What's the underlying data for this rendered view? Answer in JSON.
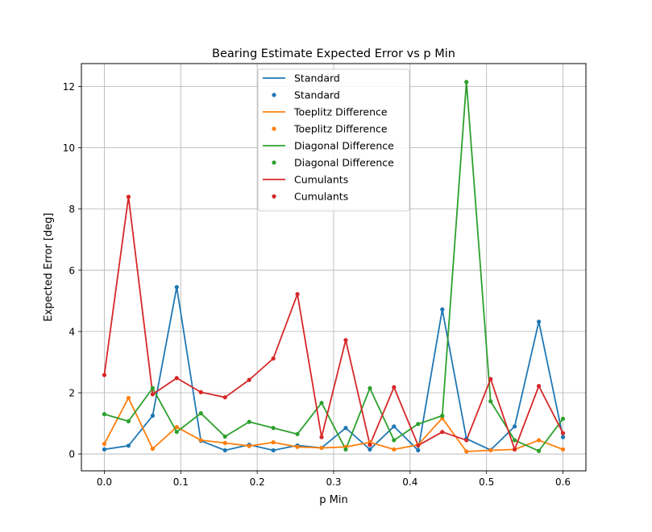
{
  "chart_data": {
    "type": "line",
    "title": "Bearing Estimate Expected Error vs p Min",
    "xlabel": "p Min",
    "ylabel": "Expected Error [deg]",
    "xlim": [
      -0.03,
      0.63
    ],
    "ylim": [
      -0.55,
      12.75
    ],
    "xticks": [
      0.0,
      0.1,
      0.2,
      0.3,
      0.4,
      0.5,
      0.6
    ],
    "xtick_labels": [
      "0.0",
      "0.1",
      "0.2",
      "0.3",
      "0.4",
      "0.5",
      "0.6"
    ],
    "yticks": [
      0,
      2,
      4,
      6,
      8,
      10,
      12
    ],
    "ytick_labels": [
      "0",
      "2",
      "4",
      "6",
      "8",
      "10",
      "12"
    ],
    "grid": true,
    "legend_position": "top-center",
    "legend_entries": [
      {
        "label": "Standard",
        "kind": "line",
        "series": 0
      },
      {
        "label": "Standard",
        "kind": "marker",
        "series": 0
      },
      {
        "label": "Toeplitz Difference",
        "kind": "line",
        "series": 1
      },
      {
        "label": "Toeplitz Difference",
        "kind": "marker",
        "series": 1
      },
      {
        "label": "Diagonal Difference",
        "kind": "line",
        "series": 2
      },
      {
        "label": "Diagonal Difference",
        "kind": "marker",
        "series": 2
      },
      {
        "label": "Cumulants",
        "kind": "line",
        "series": 3
      },
      {
        "label": "Cumulants",
        "kind": "marker",
        "series": 3
      }
    ],
    "x": [
      0.0,
      0.0316,
      0.0632,
      0.0947,
      0.1263,
      0.1579,
      0.1895,
      0.2211,
      0.2526,
      0.2842,
      0.3158,
      0.3474,
      0.3789,
      0.4105,
      0.4421,
      0.4737,
      0.5053,
      0.5368,
      0.5684,
      0.6
    ],
    "series": [
      {
        "name": "Standard",
        "color": "#1f77b4",
        "values": [
          0.15,
          0.27,
          1.25,
          5.45,
          0.43,
          0.12,
          0.3,
          0.12,
          0.28,
          0.2,
          0.85,
          0.15,
          0.9,
          0.12,
          4.72,
          0.5,
          0.13,
          0.9,
          4.32,
          0.55
        ]
      },
      {
        "name": "Toeplitz Difference",
        "color": "#ff7f0e",
        "values": [
          0.33,
          1.83,
          0.17,
          0.88,
          0.45,
          0.36,
          0.26,
          0.38,
          0.23,
          0.2,
          0.23,
          0.38,
          0.15,
          0.3,
          1.17,
          0.08,
          0.12,
          0.15,
          0.45,
          0.15
        ]
      },
      {
        "name": "Diagonal Difference",
        "color": "#2ca02c",
        "values": [
          1.3,
          1.07,
          2.15,
          0.72,
          1.33,
          0.57,
          1.05,
          0.85,
          0.65,
          1.67,
          0.15,
          2.15,
          0.45,
          0.98,
          1.25,
          12.15,
          1.72,
          0.45,
          0.1,
          1.15
        ]
      },
      {
        "name": "Cumulants",
        "color": "#d62728",
        "values": [
          2.58,
          8.4,
          1.95,
          2.48,
          2.02,
          1.85,
          2.42,
          3.12,
          5.22,
          0.55,
          3.72,
          0.3,
          2.18,
          0.28,
          0.72,
          0.45,
          2.45,
          0.15,
          2.22,
          0.68
        ]
      }
    ]
  }
}
